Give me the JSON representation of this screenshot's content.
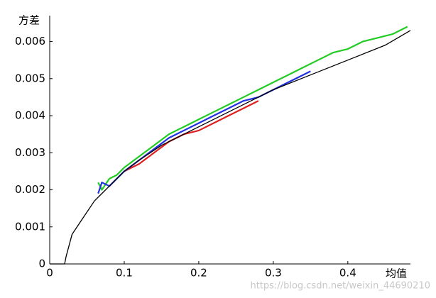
{
  "chart_data": {
    "type": "line",
    "xlabel": "均值",
    "ylabel": "方差",
    "watermark": "https://blog.csdn.net/weixin_44690210",
    "xlim": [
      0,
      0.484
    ],
    "ylim": [
      0,
      0.0067
    ],
    "xticks": [
      0,
      0.1,
      0.2,
      0.3,
      0.4
    ],
    "yticks": [
      0,
      0.001,
      0.002,
      0.003,
      0.004,
      0.005,
      0.006
    ],
    "grid": false,
    "series": [
      {
        "color": "#22cc22",
        "x": [
          0.065,
          0.07,
          0.08,
          0.09,
          0.1,
          0.12,
          0.14,
          0.16,
          0.18,
          0.2,
          0.22,
          0.24,
          0.26,
          0.28,
          0.3,
          0.32,
          0.34,
          0.36,
          0.38,
          0.4,
          0.42,
          0.44,
          0.46,
          0.48
        ],
        "values": [
          0.0022,
          0.002,
          0.0023,
          0.0024,
          0.0026,
          0.0029,
          0.0032,
          0.0035,
          0.0037,
          0.0039,
          0.0041,
          0.0043,
          0.0045,
          0.0047,
          0.0049,
          0.0051,
          0.0053,
          0.0055,
          0.0057,
          0.0058,
          0.006,
          0.0061,
          0.0062,
          0.0064
        ]
      },
      {
        "color": "#e02020",
        "x": [
          0.1,
          0.12,
          0.14,
          0.16,
          0.18,
          0.2,
          0.22,
          0.24,
          0.26,
          0.28
        ],
        "values": [
          0.0025,
          0.0027,
          0.003,
          0.0033,
          0.0035,
          0.0036,
          0.0038,
          0.004,
          0.0042,
          0.0044
        ]
      },
      {
        "color": "#2030e0",
        "x": [
          0.065,
          0.07,
          0.08,
          0.1,
          0.12,
          0.14,
          0.16,
          0.18,
          0.2,
          0.22,
          0.24,
          0.26,
          0.28,
          0.3,
          0.32,
          0.34,
          0.35
        ],
        "values": [
          0.0019,
          0.0022,
          0.0021,
          0.0025,
          0.0028,
          0.0031,
          0.0034,
          0.0036,
          0.0038,
          0.004,
          0.0042,
          0.0044,
          0.0045,
          0.0047,
          0.0049,
          0.0051,
          0.0052
        ]
      },
      {
        "color": "#000000",
        "x": [
          0,
          0.02,
          0.022,
          0.03,
          0.04,
          0.05,
          0.06,
          0.07,
          0.08,
          0.1,
          0.12,
          0.15,
          0.2,
          0.25,
          0.3,
          0.35,
          0.4,
          0.45,
          0.484
        ],
        "values": [
          0,
          0,
          0.0002,
          0.0008,
          0.0011,
          0.0014,
          0.0017,
          0.0019,
          0.0021,
          0.0025,
          0.0028,
          0.0032,
          0.0037,
          0.0042,
          0.0047,
          0.0051,
          0.0055,
          0.0059,
          0.0063
        ]
      }
    ]
  }
}
